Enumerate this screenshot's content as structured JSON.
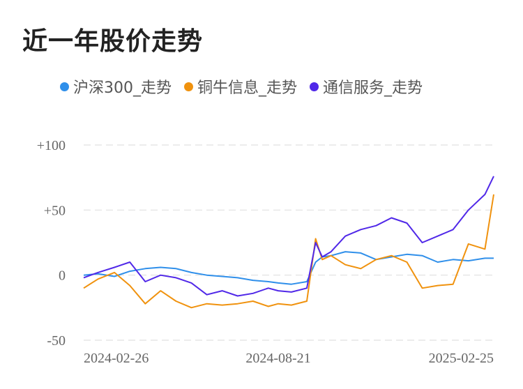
{
  "title": "近一年股价走势",
  "chart_data": {
    "type": "line",
    "title": "近一年股价走势",
    "x_ticks": [
      "2024-02-26",
      "2024-08-21",
      "2025-02-25"
    ],
    "y_ticks": [
      "+100",
      "+50",
      "0",
      "-50"
    ],
    "ylim": [
      -50,
      100
    ],
    "grid": true,
    "legend_position": "top",
    "x": [
      "2024-02-26",
      "2024-03-10",
      "2024-03-25",
      "2024-04-08",
      "2024-04-22",
      "2024-05-06",
      "2024-05-20",
      "2024-06-03",
      "2024-06-17",
      "2024-07-01",
      "2024-07-15",
      "2024-07-29",
      "2024-08-12",
      "2024-08-21",
      "2024-09-02",
      "2024-09-16",
      "2024-09-24",
      "2024-09-30",
      "2024-10-08",
      "2024-10-21",
      "2024-11-04",
      "2024-11-18",
      "2024-12-02",
      "2024-12-16",
      "2024-12-30",
      "2025-01-13",
      "2025-01-27",
      "2025-02-10",
      "2025-02-25",
      "2025-03-05"
    ],
    "series": [
      {
        "name": "沪深300_走势",
        "color": "#2f8fea",
        "values": [
          0,
          1,
          -1,
          3,
          5,
          6,
          5,
          2,
          0,
          -1,
          -2,
          -4,
          -5,
          -6,
          -7,
          -5,
          10,
          14,
          15,
          18,
          17,
          12,
          14,
          16,
          15,
          10,
          12,
          11,
          13,
          13
        ]
      },
      {
        "name": "铜牛信息_走势",
        "color": "#f0920e",
        "values": [
          -10,
          -3,
          2,
          -8,
          -22,
          -12,
          -20,
          -25,
          -22,
          -23,
          -22,
          -20,
          -24,
          -22,
          -23,
          -20,
          28,
          12,
          15,
          8,
          5,
          12,
          15,
          10,
          -10,
          -8,
          -7,
          24,
          20,
          62
        ]
      },
      {
        "name": "通信服务_走势",
        "color": "#5028e8",
        "values": [
          -2,
          2,
          6,
          10,
          -5,
          0,
          -2,
          -6,
          -15,
          -12,
          -16,
          -14,
          -10,
          -12,
          -13,
          -10,
          25,
          14,
          18,
          30,
          35,
          38,
          44,
          40,
          25,
          30,
          35,
          50,
          62,
          76
        ]
      }
    ]
  }
}
